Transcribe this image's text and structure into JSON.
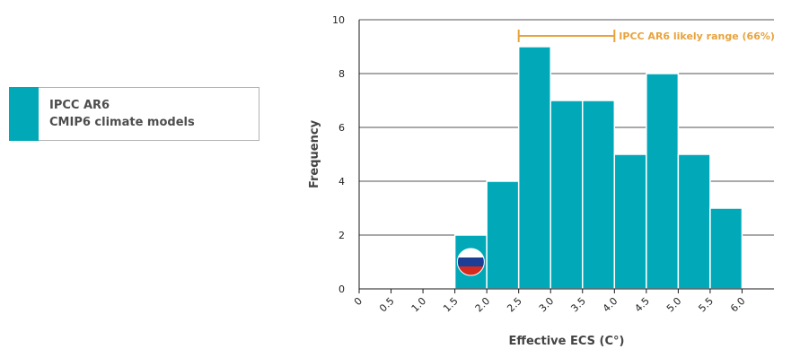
{
  "legend": {
    "line1": "IPCC AR6",
    "line2": "CMIP6 climate models"
  },
  "colors": {
    "bar": "#00a8b8",
    "range": "#e8a33c",
    "grid": "#1a1a1a",
    "flag_white": "#ffffff",
    "flag_blue": "#1c3f95",
    "flag_red": "#d52b1e"
  },
  "chart_data": {
    "type": "bar",
    "xlabel": "Effective ECS (C°)",
    "ylabel": "Frequency",
    "xlim": [
      0,
      6.5
    ],
    "ylim": [
      0,
      10
    ],
    "xticks": [
      "0",
      "0.5",
      "1.0",
      "1.5",
      "2.0",
      "2.5",
      "3.0",
      "3.5",
      "4.0",
      "4.5",
      "5.0",
      "5.5",
      "6.0"
    ],
    "yticks": [
      "0",
      "2",
      "4",
      "6",
      "8",
      "10"
    ],
    "grid": "horizontal",
    "bars": [
      {
        "bin": [
          1.5,
          2.0
        ],
        "value": 2
      },
      {
        "bin": [
          2.0,
          2.5
        ],
        "value": 4
      },
      {
        "bin": [
          2.5,
          3.0
        ],
        "value": 9
      },
      {
        "bin": [
          3.0,
          3.5
        ],
        "value": 7
      },
      {
        "bin": [
          3.5,
          4.0
        ],
        "value": 7
      },
      {
        "bin": [
          4.0,
          4.5
        ],
        "value": 5
      },
      {
        "bin": [
          4.5,
          5.0
        ],
        "value": 8
      },
      {
        "bin": [
          5.0,
          5.5
        ],
        "value": 5
      },
      {
        "bin": [
          5.5,
          6.0
        ],
        "value": 3
      }
    ],
    "annotation": {
      "label": "IPCC AR6 likely range (66%)",
      "range": [
        2.5,
        4.0
      ],
      "y": 9.4
    },
    "marker": {
      "icon": "russia-flag-icon",
      "x": 1.75,
      "y": 1
    }
  }
}
